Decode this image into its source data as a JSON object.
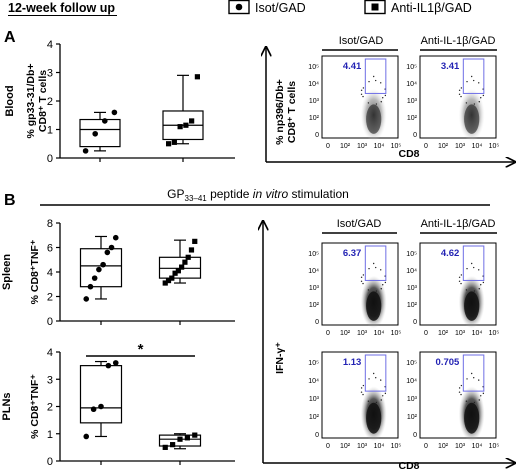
{
  "header": {
    "title": "12-week follow up"
  },
  "legend": [
    {
      "label": "Isot/GAD",
      "marker": "circle"
    },
    {
      "label": "Anti-IL1β/GAD",
      "marker": "square"
    }
  ],
  "panels": {
    "A": {
      "letter": "A"
    },
    "B": {
      "letter": "B"
    }
  },
  "stimulation_label": {
    "main": "GP",
    "sub": "33–41",
    "rest": " peptide ",
    "italic": "in vitro",
    "tail": " stimulation"
  },
  "colors": {
    "gate": "#6e6ee6",
    "percent_text": "#2323b4",
    "axis": "#000000"
  },
  "chart_data": [
    {
      "id": "A-blood",
      "type": "box",
      "row_label": "Blood",
      "ylabel": [
        "% gp33-31/Db+",
        "CD8⁺ T cells"
      ],
      "yticks": [
        "0",
        "1",
        "2",
        "3",
        "4"
      ],
      "ylim": [
        0,
        4
      ],
      "groups": [
        {
          "name": "Isot/GAD",
          "marker": "circle",
          "min": 0.25,
          "q1": 0.4,
          "median": 1.0,
          "q3": 1.35,
          "max": 1.6,
          "points": [
            0.25,
            0.85,
            1.3,
            1.6
          ]
        },
        {
          "name": "Anti-IL1β/GAD",
          "marker": "square",
          "min": 0.5,
          "q1": 0.65,
          "median": 1.15,
          "q3": 1.65,
          "max": 2.9,
          "points": [
            0.5,
            0.55,
            1.1,
            1.15,
            1.3,
            2.85
          ]
        }
      ]
    },
    {
      "id": "B-spleen",
      "type": "box",
      "row_label": "Spleen",
      "ylabel": [
        "% CD8⁺TNF⁺"
      ],
      "yticks": [
        "0",
        "2",
        "4",
        "6",
        "8"
      ],
      "ylim": [
        0,
        8
      ],
      "groups": [
        {
          "name": "Isot/GAD",
          "marker": "circle",
          "min": 1.8,
          "q1": 2.8,
          "median": 4.5,
          "q3": 5.9,
          "max": 6.9,
          "points": [
            1.8,
            2.8,
            3.5,
            4.2,
            4.6,
            5.6,
            6.0,
            6.8
          ]
        },
        {
          "name": "Anti-IL1β/GAD",
          "marker": "square",
          "min": 3.1,
          "q1": 3.5,
          "median": 4.3,
          "q3": 5.2,
          "max": 6.6,
          "points": [
            3.1,
            3.3,
            3.5,
            3.9,
            4.1,
            4.4,
            4.8,
            5.2,
            5.8,
            6.5
          ]
        }
      ]
    },
    {
      "id": "B-plns",
      "type": "box",
      "row_label": "PLNs",
      "ylabel": [
        "% CD8⁺TNF⁺"
      ],
      "yticks": [
        "0",
        "1",
        "2",
        "3",
        "4"
      ],
      "ylim": [
        0,
        4
      ],
      "significance": "*",
      "groups": [
        {
          "name": "Isot/GAD",
          "marker": "circle",
          "min": 0.9,
          "q1": 1.4,
          "median": 1.95,
          "q3": 3.5,
          "max": 3.65,
          "points": [
            0.9,
            1.9,
            2.0,
            3.5,
            3.6
          ]
        },
        {
          "name": "Anti-IL1β/GAD",
          "marker": "square",
          "min": 0.45,
          "q1": 0.55,
          "median": 0.8,
          "q3": 0.95,
          "max": 1.0,
          "points": [
            0.5,
            0.6,
            0.8,
            0.85,
            0.95
          ]
        }
      ]
    }
  ],
  "flow": {
    "A": {
      "ylabel": [
        "% np396/Db+",
        "CD8⁺ T cells"
      ],
      "xlabel": "CD8",
      "headers": [
        "Isot/GAD",
        "Anti-IL-1β/GAD"
      ],
      "plots": [
        {
          "percent": "4.41"
        },
        {
          "percent": "3.41"
        }
      ]
    },
    "B": {
      "ylabel": "IFN-γ⁺",
      "xlabel": "CD8",
      "headers": [
        "Isot/GAD",
        "Anti-IL-1β/GAD"
      ],
      "plots": [
        {
          "percent": "6.37"
        },
        {
          "percent": "4.62"
        },
        {
          "percent": "1.13"
        },
        {
          "percent": "0.705"
        }
      ]
    },
    "yticks": [
      "10⁵",
      "10⁴",
      "10³",
      "10²",
      "0"
    ],
    "xticks": [
      "0",
      "10²",
      "10³",
      "10⁴",
      "10⁵"
    ]
  }
}
